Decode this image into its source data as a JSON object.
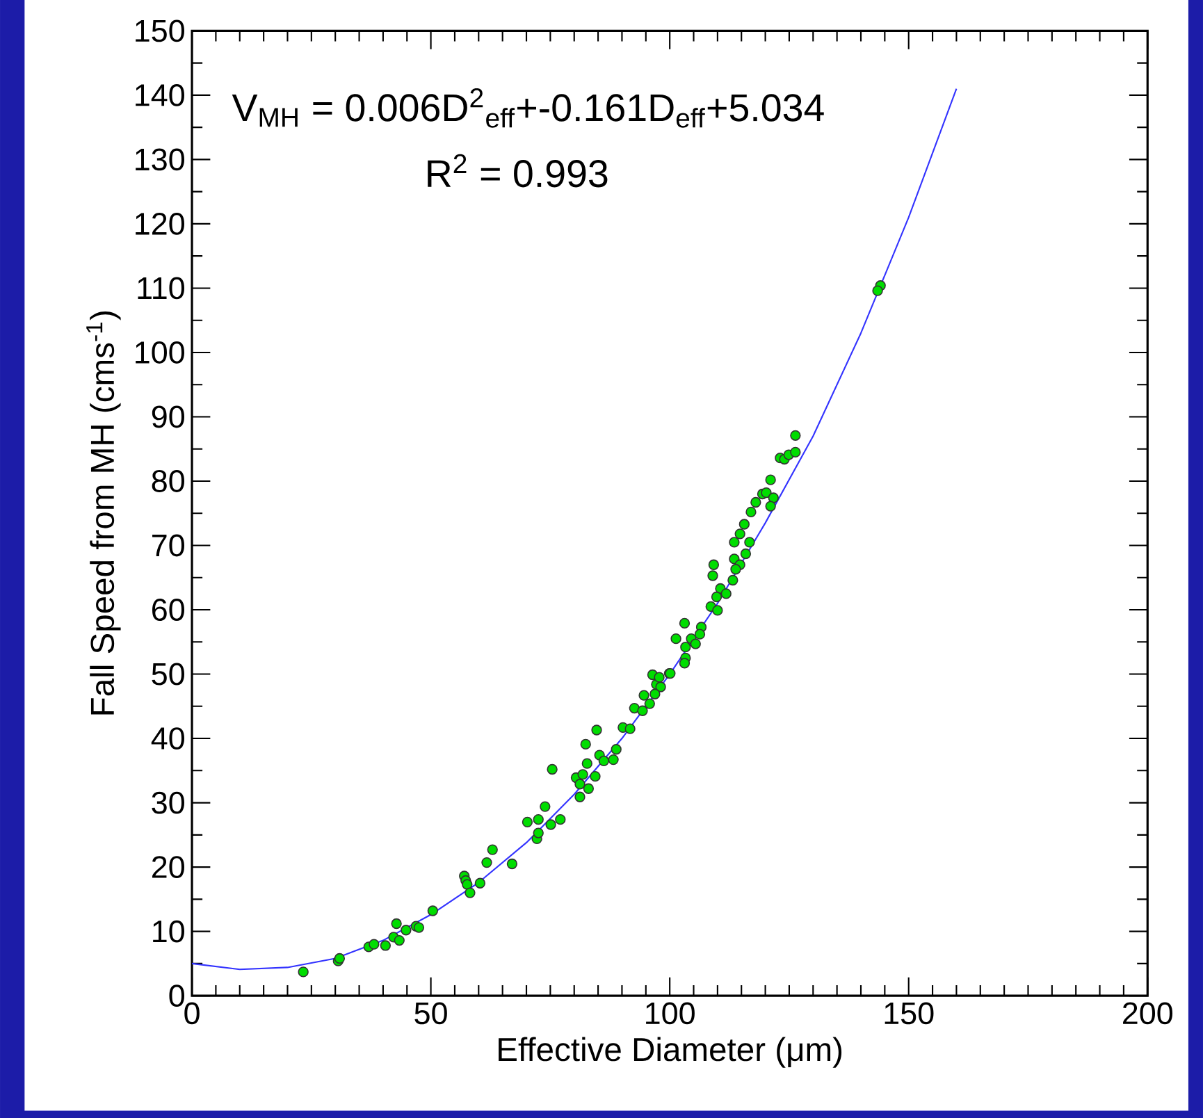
{
  "chart_data": {
    "type": "scatter",
    "xlabel": "Effective Diameter (μm)",
    "ylabel": "Fall Speed from MH (cms$^{-1}$)",
    "xlim": [
      0,
      200
    ],
    "ylim": [
      0,
      150
    ],
    "xticks": [
      0,
      50,
      100,
      150,
      200
    ],
    "yticks": [
      0,
      10,
      20,
      30,
      40,
      50,
      60,
      70,
      80,
      90,
      100,
      110,
      120,
      130,
      140,
      150
    ],
    "grid": false,
    "marker": "circle",
    "annotations": [
      "V$_{MH}$ = 0.006D$^{2}$$_{eff}$+-0.161D$_{eff}$+5.034",
      "R$^{2}$ = 0.993"
    ],
    "series": [
      {
        "color": "#00dd00",
        "x": [
          23.3,
          30.6,
          30.9,
          37,
          38.1,
          40.5,
          42.2,
          42.8,
          43.4,
          44.8,
          46.9,
          47.5,
          50.4,
          57,
          57.3,
          57.6,
          58.2,
          60.3,
          61.7,
          62.9,
          67,
          70.2,
          72.5,
          72.2,
          72.5,
          73.9,
          75.1,
          75.4,
          77.1,
          82.4,
          84.7,
          82.7,
          85.3,
          86.2,
          88.2,
          88.8,
          80.4,
          81.2,
          81.2,
          83,
          84.4,
          81.8,
          90.2,
          91.7,
          92.6,
          94.3,
          94.6,
          95.8,
          96.4,
          97.2,
          98.1,
          97.8,
          99.9,
          96.9,
          101.3,
          103.1,
          103.3,
          103.3,
          103.1,
          104.5,
          126.3,
          123.1,
          124,
          124.9,
          126.3,
          121.1,
          119.4,
          120.2,
          121.7,
          121.1,
          118,
          117,
          115.6,
          114.7,
          113.5,
          116.7,
          115.9,
          113.5,
          114.7,
          113.8,
          109.2,
          109,
          113.2,
          110.6,
          111.8,
          109.8,
          108.6,
          110,
          106.6,
          106.3,
          105.4,
          100.1,
          144.1,
          143.5
        ],
        "values": [
          3.7,
          5.4,
          5.8,
          7.6,
          8.0,
          7.8,
          9.1,
          11.2,
          8.6,
          10.2,
          10.8,
          10.6,
          13.2,
          18.6,
          17.9,
          17.3,
          16,
          17.5,
          20.7,
          22.7,
          20.5,
          27.0,
          27.4,
          24.4,
          25.3,
          29.4,
          26.6,
          35.2,
          27.4,
          39.1,
          41.3,
          36.1,
          37.4,
          36.5,
          36.7,
          38.3,
          33.9,
          32.9,
          30.9,
          32.2,
          34.1,
          34.4,
          41.7,
          41.5,
          44.7,
          44.3,
          46.7,
          45.4,
          49.9,
          48.4,
          48,
          49.5,
          50.1,
          46.9,
          55.5,
          57.9,
          54.2,
          52.5,
          51.7,
          55.5,
          87.1,
          83.6,
          83.4,
          84.1,
          84.5,
          80.2,
          78,
          78.2,
          77.4,
          76.1,
          76.7,
          75.2,
          73.3,
          71.8,
          70.5,
          70.5,
          68.7,
          67.9,
          67,
          66.3,
          67,
          65.3,
          64.6,
          63.3,
          62.5,
          62,
          60.5,
          59.9,
          57.3,
          56.2,
          54.7,
          50.1,
          110.4,
          109.6
        ]
      },
      {
        "type": "line",
        "color": "#3333ff",
        "marker": "none",
        "x": [
          0,
          10,
          20,
          30,
          40,
          50,
          60,
          70,
          80,
          90,
          100,
          110,
          120,
          130,
          140,
          150,
          160
        ],
        "values": [
          5,
          4.1,
          4.4,
          5.8,
          8.6,
          12.6,
          17.6,
          23.8,
          31.3,
          40,
          50,
          61,
          73.5,
          87,
          103,
          121,
          141
        ]
      }
    ]
  }
}
